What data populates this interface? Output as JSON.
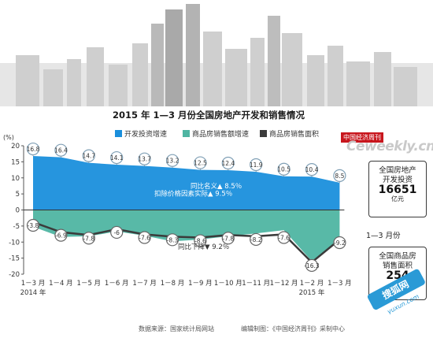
{
  "colors": {
    "investment": "#1a8fdc",
    "sales_amount": "#4fb5a2",
    "sales_area_line": "#3b3b3b",
    "skyline": "#c5c5c5",
    "circle_fill": "#ffffff",
    "accent_red": "#c8161d"
  },
  "header": {
    "title": "2015 年 1—3 月份全国房地产开发和销售情况",
    "logo_paper": "中国经济周刊",
    "logo_site": "Ceweekly.cn"
  },
  "chart_data": {
    "type": "area",
    "title": "2015 年 1—3 月份全国房地产开发和销售情况",
    "yunit": "(%)",
    "ylim": [
      -20,
      20
    ],
    "yticks": [
      20,
      15,
      10,
      5,
      0,
      -5,
      -10,
      -15,
      -20
    ],
    "categories": [
      "1－3 月",
      "1－4 月",
      "1－5 月",
      "1－6 月",
      "1－7 月",
      "1－8 月",
      "1－9 月",
      "1－10 月",
      "1－11 月",
      "1－12 月",
      "1－2 月",
      "1－3 月"
    ],
    "year_labels": [
      {
        "index": 0,
        "label": "2014 年"
      },
      {
        "index": 10,
        "label": "2015 年"
      }
    ],
    "series": [
      {
        "name": "开发投资增速",
        "kind": "area",
        "values": [
          16.8,
          16.4,
          14.7,
          14.1,
          13.7,
          13.2,
          12.5,
          12.4,
          11.9,
          10.5,
          10.4,
          8.5
        ]
      },
      {
        "name": "商品房销售额增速",
        "kind": "area",
        "values": [
          -5.2,
          -8.4,
          -8.2,
          -6.7,
          -8.0,
          -9.8,
          -9.2,
          -8.2,
          -7.3,
          -6.3,
          -15.9,
          -9.3
        ]
      },
      {
        "name": "商品房销售面积",
        "kind": "line",
        "values": [
          -3.8,
          -6.9,
          -7.8,
          -6.0,
          -7.6,
          -8.3,
          -8.6,
          -7.8,
          -8.2,
          -7.6,
          -16.3,
          -9.2
        ]
      }
    ],
    "annotations": {
      "investment_nominal": "同比名义▲ 8.5％",
      "investment_real": "扣除价格因素实际▲ 9.5％",
      "area_change": "同比下降▼ 9.2％"
    },
    "side_boxes": [
      {
        "lines": [
          "全国房地产",
          "开发投资"
        ],
        "value": "16651",
        "unit": "亿元"
      },
      {
        "lines": [
          "全国商品房",
          "销售面积"
        ],
        "value": "254"
      }
    ],
    "period_label": "1—3 月份",
    "grid": true,
    "legend_position": "top"
  },
  "footer": {
    "source": "数据来源：国家统计局网站",
    "editor": "编辑制图：《中国经济周刊》采制中心"
  },
  "watermark": {
    "text_cn": "搜狐网",
    "text_en": "yuxun.com"
  }
}
